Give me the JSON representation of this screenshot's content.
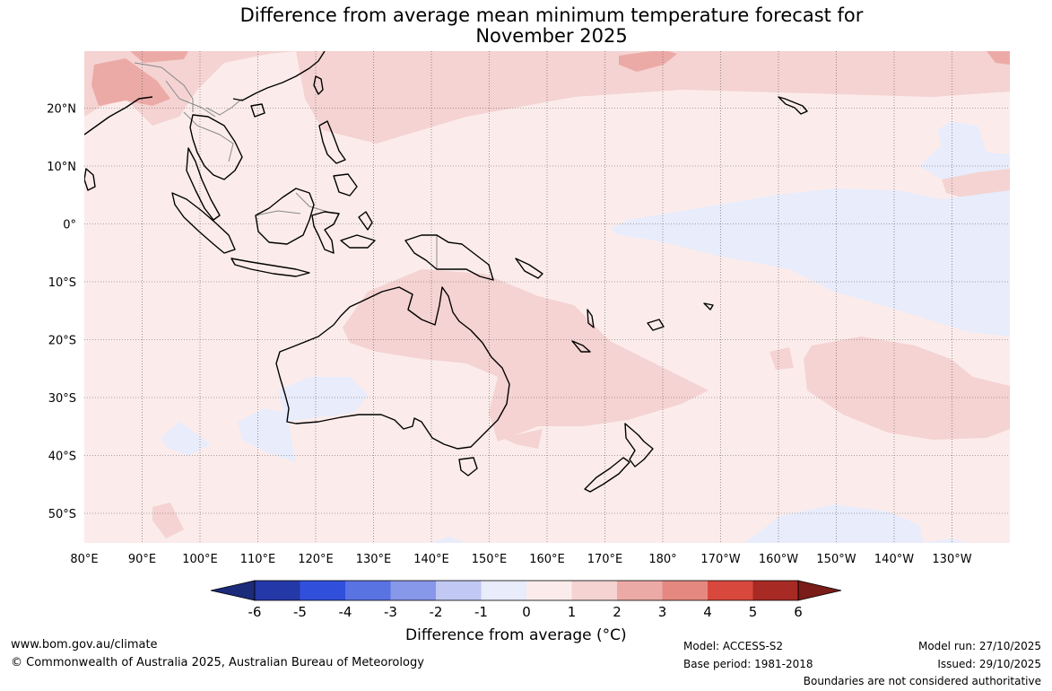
{
  "title_line1": "Difference from average mean minimum temperature forecast for",
  "title_line2": "November 2025",
  "map": {
    "lat_labels": [
      "20°N",
      "10°N",
      "0°",
      "10°S",
      "20°S",
      "30°S",
      "40°S",
      "50°S"
    ],
    "lon_labels": [
      "80°E",
      "90°E",
      "100°E",
      "110°E",
      "120°E",
      "130°E",
      "140°E",
      "150°E",
      "160°E",
      "170°E",
      "180°",
      "170°W",
      "160°W",
      "150°W",
      "140°W",
      "130°W"
    ],
    "colors": {
      "background_0_to_1": "#fbeceb",
      "band_1_to_2": "#f4d3d2",
      "band_2_to_3": "#ecaaa6",
      "band_minus1_to_0": "#e8ecfb",
      "coastline": "#000000",
      "border": "#888888"
    }
  },
  "colorbar": {
    "title": "Difference from average (°C)",
    "tick_labels": [
      "-6",
      "-5",
      "-4",
      "-3",
      "-2",
      "-1",
      "0",
      "1",
      "2",
      "3",
      "4",
      "5",
      "6"
    ],
    "colors": [
      "#1c2a7a",
      "#2538a8",
      "#3050dc",
      "#5a73e3",
      "#8797e9",
      "#c0c8f3",
      "#e8ecfb",
      "#fbeceb",
      "#f4d3d2",
      "#ecaaa6",
      "#e58980",
      "#d9483d",
      "#a82a24",
      "#7a1c18"
    ]
  },
  "footer": {
    "website": "www.bom.gov.au/climate",
    "copyright": "© Commonwealth of Australia 2025, Australian Bureau of Meteorology",
    "model": "Model: ACCESS-S2",
    "base_period": "Base period: 1981-2018",
    "model_run": "Model run: 27/10/2025",
    "issued": "Issued: 29/10/2025",
    "disclaimer": "Boundaries are not considered authoritative"
  }
}
